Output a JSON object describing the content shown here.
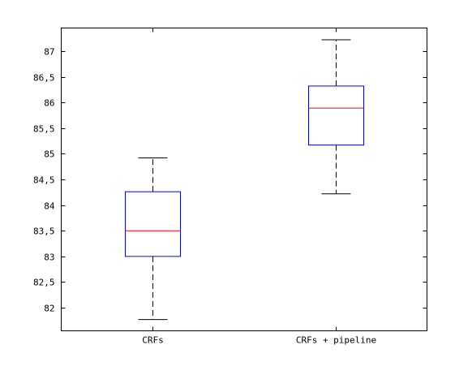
{
  "chart_data": {
    "type": "box",
    "title": "",
    "xlabel": "",
    "ylabel": "",
    "categories": [
      "CRFs",
      "CRFs + pipeline"
    ],
    "ylim": [
      81.55,
      87.45
    ],
    "yticks": [
      82,
      82.5,
      83,
      83.5,
      84,
      84.5,
      85,
      85.5,
      86,
      86.5,
      87
    ],
    "yticklabels": [
      "82",
      "82,5",
      "83",
      "83,5",
      "84",
      "84,5",
      "85",
      "85,5",
      "86",
      "86,5",
      "87"
    ],
    "boxes": [
      {
        "category": "CRFs",
        "whisker_low": 81.77,
        "q1": 83.0,
        "median": 83.5,
        "q3": 84.26,
        "whisker_high": 84.92
      },
      {
        "category": "CRFs + pipeline",
        "whisker_low": 84.22,
        "q1": 85.17,
        "median": 85.89,
        "q3": 86.32,
        "whisker_high": 87.22
      }
    ],
    "grid": false,
    "colors": {
      "box": "#0000ff",
      "median": "#ff0000",
      "whisker": "#000000",
      "axes": "#000000"
    }
  }
}
